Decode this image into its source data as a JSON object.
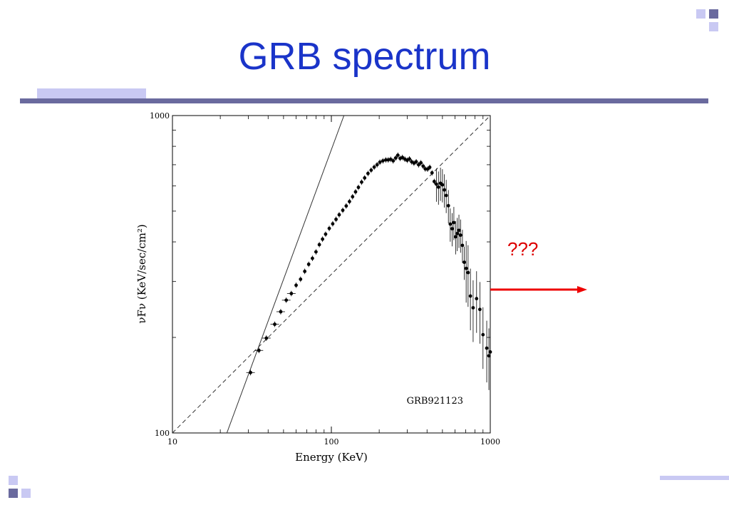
{
  "slide": {
    "title": "GRB spectrum",
    "annotation": "???",
    "colors": {
      "title": "#1a34c9",
      "rule": "#6a6a9e",
      "accent_light": "#c9c9f3",
      "arrow": "#ee0000"
    }
  },
  "chart_data": {
    "type": "scatter",
    "title": "",
    "xlabel": "Energy (KeV)",
    "ylabel": "νFν (KeV/sec/cm²)",
    "xscale": "log",
    "yscale": "log",
    "xlim": [
      10,
      1000
    ],
    "ylim": [
      100,
      1000
    ],
    "xticks": [
      10,
      100,
      1000
    ],
    "yticks": [
      100,
      1000
    ],
    "x_tick_labels": [
      "10",
      "100",
      "1000"
    ],
    "y_tick_labels": [
      "100",
      "1000"
    ],
    "grid": false,
    "annotations": [
      "GRB921123"
    ],
    "reference_lines": [
      {
        "style": "solid",
        "points": [
          [
            22,
            100
          ],
          [
            120,
            1000
          ]
        ]
      },
      {
        "style": "dashed",
        "points": [
          [
            10,
            100
          ],
          [
            1000,
            1000
          ]
        ]
      }
    ],
    "series": [
      {
        "points": [
          {
            "x": 31,
            "y": 155
          },
          {
            "x": 35,
            "y": 182
          },
          {
            "x": 39,
            "y": 199
          },
          {
            "x": 44,
            "y": 220
          },
          {
            "x": 48,
            "y": 241
          },
          {
            "x": 52,
            "y": 262
          },
          {
            "x": 56,
            "y": 275
          },
          {
            "x": 60,
            "y": 292
          },
          {
            "x": 64,
            "y": 305
          },
          {
            "x": 68,
            "y": 323
          },
          {
            "x": 72,
            "y": 340
          },
          {
            "x": 76,
            "y": 355
          },
          {
            "x": 80,
            "y": 372
          },
          {
            "x": 84,
            "y": 392
          },
          {
            "x": 88,
            "y": 408
          },
          {
            "x": 92,
            "y": 423
          },
          {
            "x": 97,
            "y": 441
          },
          {
            "x": 102,
            "y": 456
          },
          {
            "x": 107,
            "y": 471
          },
          {
            "x": 112,
            "y": 487
          },
          {
            "x": 118,
            "y": 503
          },
          {
            "x": 124,
            "y": 519
          },
          {
            "x": 130,
            "y": 536
          },
          {
            "x": 136,
            "y": 555
          },
          {
            "x": 142,
            "y": 575
          },
          {
            "x": 148,
            "y": 594
          },
          {
            "x": 155,
            "y": 617
          },
          {
            "x": 162,
            "y": 636
          },
          {
            "x": 170,
            "y": 657
          },
          {
            "x": 178,
            "y": 673
          },
          {
            "x": 186,
            "y": 688
          },
          {
            "x": 194,
            "y": 700
          },
          {
            "x": 202,
            "y": 713
          },
          {
            "x": 211,
            "y": 720
          },
          {
            "x": 220,
            "y": 725
          },
          {
            "x": 228,
            "y": 725
          },
          {
            "x": 236,
            "y": 728
          },
          {
            "x": 245,
            "y": 720
          },
          {
            "x": 254,
            "y": 735
          },
          {
            "x": 262,
            "y": 750
          },
          {
            "x": 271,
            "y": 733
          },
          {
            "x": 280,
            "y": 738
          },
          {
            "x": 290,
            "y": 729
          },
          {
            "x": 300,
            "y": 723
          },
          {
            "x": 310,
            "y": 730
          },
          {
            "x": 320,
            "y": 715
          },
          {
            "x": 331,
            "y": 708
          },
          {
            "x": 342,
            "y": 715
          },
          {
            "x": 354,
            "y": 700
          },
          {
            "x": 366,
            "y": 710
          },
          {
            "x": 378,
            "y": 693
          },
          {
            "x": 390,
            "y": 679
          },
          {
            "x": 403,
            "y": 678
          },
          {
            "x": 416,
            "y": 687
          },
          {
            "x": 430,
            "y": 660
          },
          {
            "x": 444,
            "y": 620
          },
          {
            "x": 458,
            "y": 608
          },
          {
            "x": 472,
            "y": 595
          },
          {
            "x": 486,
            "y": 612
          },
          {
            "x": 500,
            "y": 605
          },
          {
            "x": 514,
            "y": 583
          },
          {
            "x": 528,
            "y": 560
          },
          {
            "x": 545,
            "y": 520
          },
          {
            "x": 560,
            "y": 455
          },
          {
            "x": 575,
            "y": 440
          },
          {
            "x": 590,
            "y": 460
          },
          {
            "x": 605,
            "y": 415
          },
          {
            "x": 620,
            "y": 425
          },
          {
            "x": 635,
            "y": 435
          },
          {
            "x": 650,
            "y": 420
          },
          {
            "x": 668,
            "y": 390
          },
          {
            "x": 686,
            "y": 345
          },
          {
            "x": 705,
            "y": 330
          },
          {
            "x": 725,
            "y": 320
          },
          {
            "x": 750,
            "y": 270
          },
          {
            "x": 780,
            "y": 248
          },
          {
            "x": 820,
            "y": 265
          },
          {
            "x": 860,
            "y": 245
          },
          {
            "x": 900,
            "y": 204
          },
          {
            "x": 950,
            "y": 185
          },
          {
            "x": 980,
            "y": 175
          },
          {
            "x": 1000,
            "y": 180
          }
        ]
      }
    ]
  }
}
